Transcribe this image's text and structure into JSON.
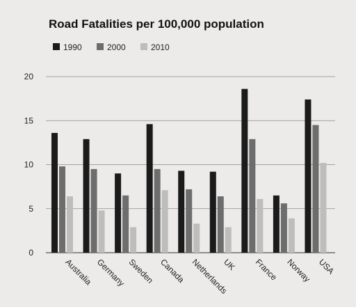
{
  "chart_data": {
    "type": "bar",
    "title": "Road Fatalities per 100,000 population",
    "xlabel": "",
    "ylabel": "",
    "ylim": [
      0,
      20
    ],
    "yticks": [
      0,
      5,
      10,
      15,
      20
    ],
    "grid": true,
    "legend_position": "top-left",
    "categories": [
      "Australia",
      "Germany",
      "Sweden",
      "Canada",
      "Netherlands",
      "UK",
      "France",
      "Norway",
      "USA"
    ],
    "series": [
      {
        "name": "1990",
        "color": "#1b1b1b",
        "values": [
          13.6,
          12.9,
          9.0,
          14.6,
          9.3,
          9.2,
          18.6,
          6.5,
          17.4
        ]
      },
      {
        "name": "2000",
        "color": "#6d6d6d",
        "values": [
          9.8,
          9.5,
          6.5,
          9.5,
          7.2,
          6.4,
          12.9,
          5.6,
          14.5
        ]
      },
      {
        "name": "2010",
        "color": "#bdbdbd",
        "values": [
          6.4,
          4.8,
          2.9,
          7.1,
          3.3,
          2.9,
          6.1,
          3.9,
          10.2
        ]
      }
    ]
  }
}
